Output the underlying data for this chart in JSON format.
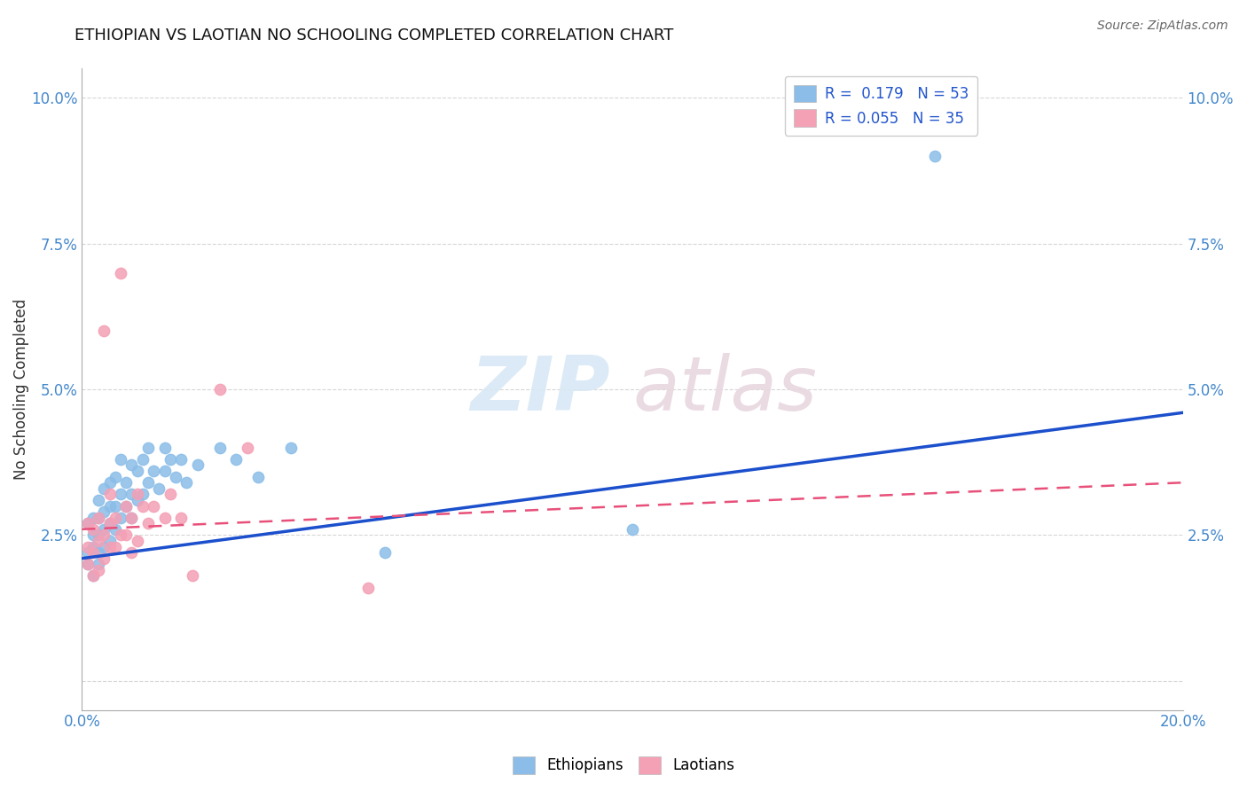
{
  "title": "ETHIOPIAN VS LAOTIAN NO SCHOOLING COMPLETED CORRELATION CHART",
  "source": "Source: ZipAtlas.com",
  "ylabel": "No Schooling Completed",
  "xlim": [
    0.0,
    0.2
  ],
  "ylim": [
    -0.005,
    0.105
  ],
  "xticks": [
    0.0,
    0.025,
    0.05,
    0.075,
    0.1,
    0.125,
    0.15,
    0.175,
    0.2
  ],
  "xticklabels": [
    "0.0%",
    "",
    "",
    "",
    "",
    "",
    "",
    "",
    "20.0%"
  ],
  "yticks": [
    0.0,
    0.025,
    0.05,
    0.075,
    0.1
  ],
  "yticklabels": [
    "",
    "2.5%",
    "5.0%",
    "7.5%",
    "10.0%"
  ],
  "r_ethiopian": 0.179,
  "n_ethiopian": 53,
  "r_laotian": 0.055,
  "n_laotian": 35,
  "ethiopian_color": "#8BBDE8",
  "laotian_color": "#F4A0B5",
  "trendline_ethiopian_color": "#1B4FCC",
  "trendline_laotian_color": "#E8507A",
  "watermark_zip": "ZIP",
  "watermark_atlas": "atlas",
  "legend_label_ethiopian": "Ethiopians",
  "legend_label_laotian": "Laotians",
  "ethiopians_x": [
    0.001,
    0.001,
    0.001,
    0.002,
    0.002,
    0.002,
    0.002,
    0.003,
    0.003,
    0.003,
    0.003,
    0.003,
    0.004,
    0.004,
    0.004,
    0.004,
    0.005,
    0.005,
    0.005,
    0.005,
    0.006,
    0.006,
    0.006,
    0.007,
    0.007,
    0.007,
    0.008,
    0.008,
    0.009,
    0.009,
    0.009,
    0.01,
    0.01,
    0.011,
    0.011,
    0.012,
    0.012,
    0.013,
    0.014,
    0.015,
    0.015,
    0.016,
    0.017,
    0.018,
    0.019,
    0.021,
    0.025,
    0.028,
    0.032,
    0.038,
    0.055,
    0.1,
    0.155
  ],
  "ethiopians_y": [
    0.02,
    0.022,
    0.027,
    0.018,
    0.023,
    0.025,
    0.028,
    0.02,
    0.022,
    0.025,
    0.028,
    0.031,
    0.023,
    0.026,
    0.029,
    0.033,
    0.024,
    0.027,
    0.03,
    0.034,
    0.026,
    0.03,
    0.035,
    0.028,
    0.032,
    0.038,
    0.03,
    0.034,
    0.028,
    0.032,
    0.037,
    0.031,
    0.036,
    0.032,
    0.038,
    0.034,
    0.04,
    0.036,
    0.033,
    0.036,
    0.04,
    0.038,
    0.035,
    0.038,
    0.034,
    0.037,
    0.04,
    0.038,
    0.035,
    0.04,
    0.022,
    0.026,
    0.09
  ],
  "laotians_x": [
    0.001,
    0.001,
    0.001,
    0.002,
    0.002,
    0.002,
    0.003,
    0.003,
    0.003,
    0.004,
    0.004,
    0.004,
    0.005,
    0.005,
    0.005,
    0.006,
    0.006,
    0.007,
    0.007,
    0.008,
    0.008,
    0.009,
    0.009,
    0.01,
    0.01,
    0.011,
    0.012,
    0.013,
    0.015,
    0.016,
    0.018,
    0.02,
    0.025,
    0.03,
    0.052
  ],
  "laotians_y": [
    0.02,
    0.023,
    0.027,
    0.018,
    0.022,
    0.026,
    0.019,
    0.024,
    0.028,
    0.021,
    0.025,
    0.06,
    0.023,
    0.027,
    0.032,
    0.023,
    0.028,
    0.025,
    0.07,
    0.025,
    0.03,
    0.022,
    0.028,
    0.024,
    0.032,
    0.03,
    0.027,
    0.03,
    0.028,
    0.032,
    0.028,
    0.018,
    0.05,
    0.04,
    0.016
  ],
  "trend_eth_x0": 0.0,
  "trend_eth_y0": 0.021,
  "trend_eth_x1": 0.2,
  "trend_eth_y1": 0.046,
  "trend_lao_x0": 0.0,
  "trend_lao_y0": 0.026,
  "trend_lao_x1": 0.2,
  "trend_lao_y1": 0.034
}
